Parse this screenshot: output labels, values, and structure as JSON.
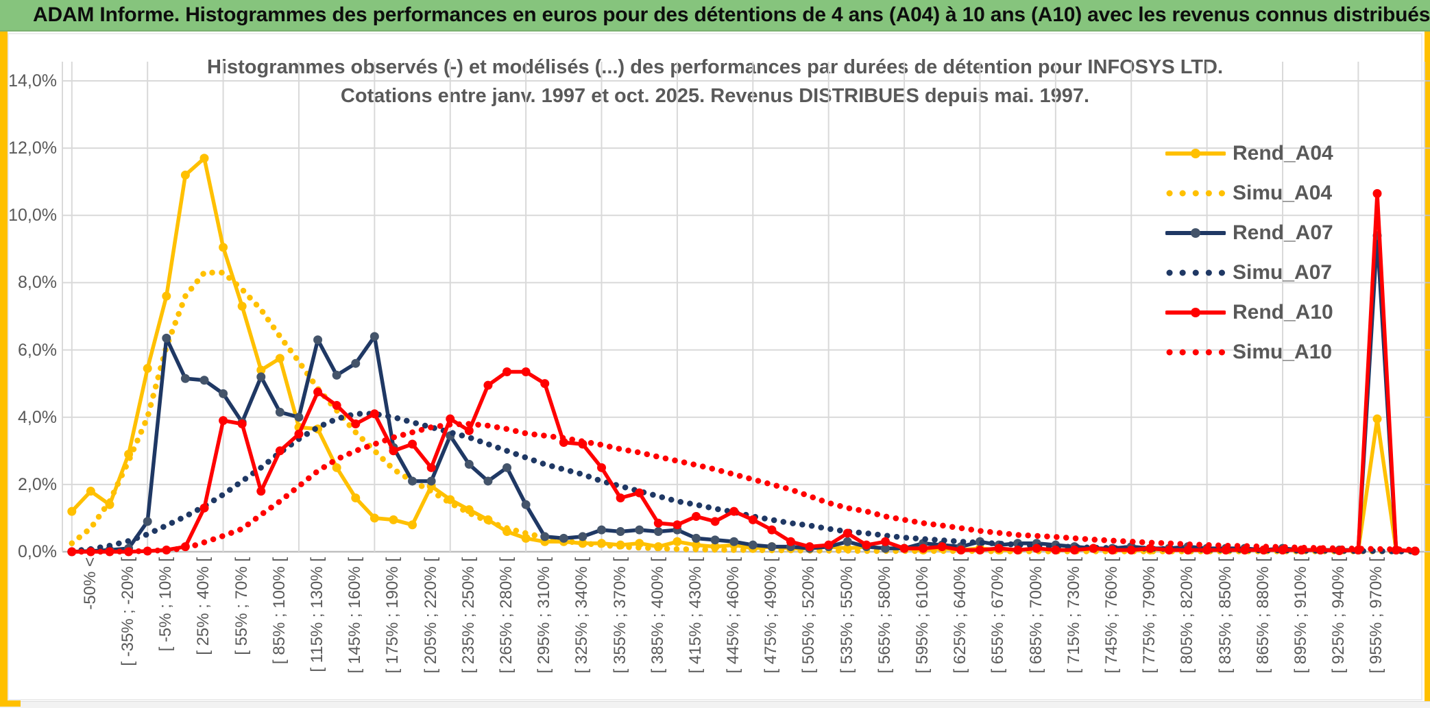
{
  "page": {
    "header_title": "ADAM Informe. Histogrammes des performances en euros pour des détentions de 4 ans (A04) à 10 ans (A10) avec les revenus connus distribués",
    "header_bg_color": "#86C47D",
    "frame_color": "#FFC000"
  },
  "chart_data": {
    "type": "line",
    "title_line1": "Histogrammes observés (-) et modélisés (...) des performances par durées de détention pour INFOSYS LTD.",
    "title_line2": "Cotations entre janv. 1997 et oct. 2025. Revenus DISTRIBUES depuis mai. 1997.",
    "ylabel": "",
    "xlabel": "",
    "ylim": [
      0,
      14
    ],
    "y_ticks": [
      "14,0%",
      "12,0%",
      "10,0%",
      "8,0%",
      "6,0%",
      "4,0%",
      "2,0%",
      "0,0%"
    ],
    "grid": true,
    "gridline_color": "#D9D9D9",
    "axis_color": "#BFBFBF",
    "tick_text_color": "#595959",
    "legend_position": "right-top",
    "n_bins": 72,
    "label_every": 2,
    "x_tick_labels": [
      "-50% <",
      "[ -35% ; -20% [",
      "[ -5% ; 10% [",
      "[ 25% ; 40% [",
      "[ 55% ; 70% [",
      "[ 85% ; 100% [",
      "[ 115% ; 130% [",
      "[ 145% ; 160% [",
      "[ 175% ; 190% [",
      "[ 205% ; 220% [",
      "[ 235% ; 250% [",
      "[ 265% ; 280% [",
      "[ 295% ; 310% [",
      "[ 325% ; 340% [",
      "[ 355% ; 370% [",
      "[ 385% ; 400% [",
      "[ 415% ; 430% [",
      "[ 445% ; 460% [",
      "[ 475% ; 490% [",
      "[ 505% ; 520% [",
      "[ 535% ; 550% [",
      "[ 565% ; 580% [",
      "[ 595% ; 610% [",
      "[ 625% ; 640% [",
      "[ 655% ; 670% [",
      "[ 685% ; 700% [",
      "[ 715% ; 730% [",
      "[ 745% ; 760% [",
      "[ 775% ; 790% [",
      "[ 805% ; 820% [",
      "[ 835% ; 850% [",
      "[ 865% ; 880% [",
      "[ 895% ; 910% [",
      "[ 925% ; 940% [",
      "[ 955% ; 970% ["
    ],
    "series": [
      {
        "name": "Rend_A04",
        "style": "solid",
        "color": "#FFC000",
        "marker_color": "#FFC000",
        "values": [
          1.2,
          1.8,
          1.4,
          2.9,
          5.45,
          7.6,
          11.2,
          11.7,
          9.05,
          7.3,
          5.4,
          5.75,
          3.7,
          3.65,
          2.5,
          1.6,
          1.0,
          0.95,
          0.8,
          1.95,
          1.55,
          1.25,
          0.95,
          0.6,
          0.4,
          0.3,
          0.3,
          0.25,
          0.25,
          0.2,
          0.25,
          0.15,
          0.3,
          0.2,
          0.15,
          0.2,
          0.1,
          0.15,
          0.1,
          0.1,
          0.15,
          0.1,
          0.15,
          0.1,
          0.1,
          0.05,
          0.1,
          0.05,
          0.1,
          0.05,
          0.05,
          0.1,
          0.05,
          0.05,
          0.1,
          0.05,
          0.05,
          0.05,
          0.1,
          0.05,
          0.05,
          0.05,
          0.05,
          0.05,
          0.05,
          0.05,
          0.05,
          0.05,
          0.05,
          3.95,
          0.05,
          0.02
        ]
      },
      {
        "name": "Simu_A04",
        "style": "dotted",
        "color": "#FFC000",
        "marker_color": "#FFC000",
        "values": [
          0.25,
          0.7,
          1.5,
          2.7,
          4.0,
          6.1,
          7.6,
          8.3,
          8.3,
          7.8,
          7.2,
          6.4,
          5.65,
          4.85,
          4.2,
          3.55,
          3.0,
          2.45,
          2.1,
          1.8,
          1.45,
          1.15,
          0.9,
          0.7,
          0.55,
          0.42,
          0.32,
          0.25,
          0.2,
          0.15,
          0.12,
          0.1,
          0.08,
          0.07,
          0.06,
          0.05,
          0.05,
          0.04,
          0.04,
          0.03,
          0.03,
          0.03,
          0.02,
          0.02,
          0.02,
          0.02,
          0.02,
          0.02,
          0.02,
          0.01,
          0.01,
          0.01,
          0.01,
          0.01,
          0.01,
          0.01,
          0.01,
          0.01,
          0.01,
          0.01,
          0.01,
          0.01,
          0.01,
          0.01,
          0.01,
          0.01,
          0.01,
          0.01,
          0.01,
          0.01,
          0.01,
          0.01
        ]
      },
      {
        "name": "Rend_A07",
        "style": "solid",
        "color": "#1F3864",
        "marker_color": "#44546A",
        "values": [
          0.0,
          0.02,
          0.05,
          0.1,
          0.9,
          6.35,
          5.15,
          5.1,
          4.7,
          3.85,
          5.2,
          4.15,
          4.0,
          6.3,
          5.25,
          5.6,
          6.4,
          3.1,
          2.1,
          2.1,
          3.45,
          2.6,
          2.1,
          2.5,
          1.4,
          0.45,
          0.4,
          0.45,
          0.65,
          0.6,
          0.65,
          0.6,
          0.65,
          0.4,
          0.35,
          0.3,
          0.2,
          0.15,
          0.15,
          0.1,
          0.15,
          0.3,
          0.15,
          0.1,
          0.1,
          0.25,
          0.2,
          0.15,
          0.3,
          0.2,
          0.25,
          0.25,
          0.2,
          0.15,
          0.1,
          0.1,
          0.15,
          0.1,
          0.1,
          0.15,
          0.1,
          0.1,
          0.1,
          0.05,
          0.1,
          0.05,
          0.05,
          0.05,
          0.05,
          9.4,
          0.05,
          0.02
        ]
      },
      {
        "name": "Simu_A07",
        "style": "dotted",
        "color": "#1F3864",
        "marker_color": "#1F3864",
        "values": [
          0.02,
          0.08,
          0.18,
          0.32,
          0.52,
          0.78,
          1.05,
          1.35,
          1.7,
          2.1,
          2.5,
          2.95,
          3.35,
          3.7,
          3.95,
          4.1,
          4.1,
          4.0,
          3.85,
          3.7,
          3.55,
          3.4,
          3.2,
          3.0,
          2.8,
          2.6,
          2.45,
          2.3,
          2.1,
          1.95,
          1.8,
          1.65,
          1.5,
          1.4,
          1.28,
          1.18,
          1.05,
          0.95,
          0.85,
          0.78,
          0.68,
          0.6,
          0.55,
          0.48,
          0.42,
          0.38,
          0.34,
          0.3,
          0.27,
          0.24,
          0.21,
          0.18,
          0.16,
          0.14,
          0.12,
          0.11,
          0.1,
          0.09,
          0.08,
          0.07,
          0.06,
          0.05,
          0.05,
          0.04,
          0.04,
          0.03,
          0.03,
          0.03,
          0.02,
          0.02,
          0.01,
          0.01
        ]
      },
      {
        "name": "Rend_A10",
        "style": "solid",
        "color": "#FF0000",
        "marker_color": "#FF0000",
        "values": [
          0.0,
          0.0,
          0.0,
          0.0,
          0.02,
          0.05,
          0.15,
          1.3,
          3.9,
          3.8,
          1.8,
          3.0,
          3.5,
          4.75,
          4.35,
          3.8,
          4.1,
          3.0,
          3.2,
          2.5,
          3.95,
          3.6,
          4.95,
          5.35,
          5.35,
          5.0,
          3.25,
          3.2,
          2.5,
          1.6,
          1.75,
          0.85,
          0.8,
          1.05,
          0.9,
          1.2,
          0.95,
          0.65,
          0.3,
          0.15,
          0.2,
          0.55,
          0.2,
          0.3,
          0.1,
          0.1,
          0.15,
          0.05,
          0.05,
          0.1,
          0.05,
          0.1,
          0.05,
          0.05,
          0.1,
          0.05,
          0.05,
          0.1,
          0.05,
          0.05,
          0.05,
          0.05,
          0.05,
          0.05,
          0.05,
          0.05,
          0.05,
          0.03,
          0.05,
          10.65,
          0.05,
          0.02
        ]
      },
      {
        "name": "Simu_A10",
        "style": "dotted",
        "color": "#FF0000",
        "marker_color": "#FF0000",
        "values": [
          0.0,
          0.0,
          0.0,
          0.01,
          0.02,
          0.05,
          0.1,
          0.28,
          0.47,
          0.68,
          1.1,
          1.5,
          1.95,
          2.4,
          2.75,
          3.0,
          3.2,
          3.4,
          3.55,
          3.7,
          3.78,
          3.8,
          3.75,
          3.65,
          3.52,
          3.45,
          3.38,
          3.28,
          3.18,
          3.05,
          2.95,
          2.82,
          2.7,
          2.58,
          2.45,
          2.3,
          2.15,
          2.0,
          1.85,
          1.65,
          1.45,
          1.3,
          1.2,
          1.05,
          0.95,
          0.85,
          0.78,
          0.7,
          0.62,
          0.56,
          0.5,
          0.47,
          0.44,
          0.4,
          0.36,
          0.33,
          0.3,
          0.27,
          0.25,
          0.22,
          0.2,
          0.18,
          0.17,
          0.15,
          0.14,
          0.12,
          0.11,
          0.1,
          0.09,
          0.08,
          0.07,
          0.06
        ]
      }
    ]
  }
}
